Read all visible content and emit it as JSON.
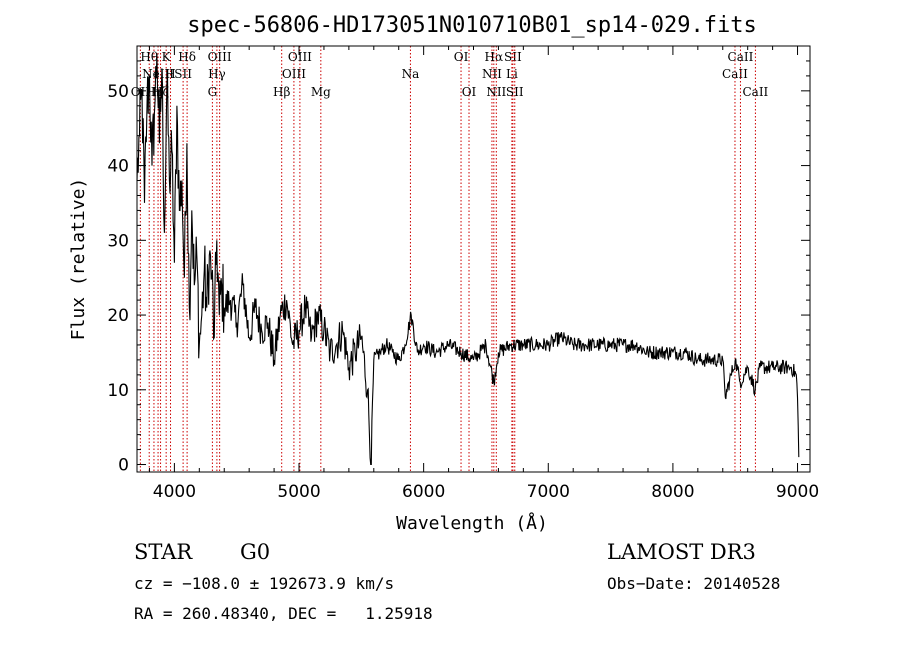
{
  "chart_data": {
    "type": "line",
    "title": "spec-56806-HD173051N010710B01_sp14-029.fits",
    "xlabel": "Wavelength (Å)",
    "ylabel": "Flux (relative)",
    "xlim": [
      3700,
      9100
    ],
    "ylim": [
      -1,
      56
    ],
    "x_ticks": [
      4000,
      5000,
      6000,
      7000,
      8000,
      9000
    ],
    "y_ticks": [
      0,
      10,
      20,
      30,
      40,
      50
    ],
    "grid": false,
    "line_color": "#000000",
    "marker_color": "#cc0000",
    "series": [
      {
        "x": [
          3700,
          3720,
          3740,
          3760,
          3780,
          3800,
          3820,
          3840,
          3860,
          3880,
          3900,
          3920,
          3940,
          3960,
          3980,
          4000,
          4020,
          4040,
          4060,
          4080,
          4100,
          4120,
          4140,
          4160,
          4180,
          4200,
          4220,
          4240,
          4260,
          4280,
          4300,
          4320,
          4340,
          4360,
          4380,
          4400,
          4450,
          4500,
          4550,
          4600,
          4650,
          4700,
          4750,
          4800,
          4850,
          4900,
          4950,
          5000,
          5050,
          5100,
          5150,
          5200,
          5250,
          5300,
          5350,
          5400,
          5450,
          5500,
          5550,
          5580,
          5600,
          5650,
          5700,
          5750,
          5800,
          5850,
          5900,
          5950,
          6000,
          6100,
          6200,
          6300,
          6400,
          6500,
          6563,
          6600,
          6700,
          6800,
          6900,
          7000,
          7100,
          7200,
          7300,
          7400,
          7500,
          7600,
          7700,
          7800,
          7900,
          8000,
          8100,
          8200,
          8300,
          8400,
          8420,
          8500,
          8540,
          8600,
          8660,
          8700,
          8800,
          8900,
          8950,
          8990,
          9000,
          9010
        ],
        "y": [
          38,
          44,
          50,
          35,
          48,
          52,
          40,
          47,
          55,
          43,
          53,
          31,
          51,
          38,
          42,
          27,
          48,
          34,
          38,
          25,
          43,
          21,
          34,
          24,
          28,
          16,
          20,
          26,
          21,
          28,
          25,
          17,
          30,
          20,
          24,
          21,
          22,
          19,
          24,
          17,
          21,
          18,
          19,
          14,
          20,
          22,
          16,
          18,
          21,
          17,
          20,
          18,
          15,
          16,
          18,
          13,
          15,
          17,
          10,
          0,
          14,
          15,
          16,
          15,
          14,
          16,
          20,
          15,
          16,
          15,
          16,
          15,
          14,
          16,
          11,
          15,
          16,
          16,
          16,
          16,
          17,
          16,
          16,
          16,
          16,
          16,
          16,
          15,
          15,
          15,
          15,
          14,
          14,
          14,
          9,
          14,
          11,
          13,
          10,
          13,
          13,
          13,
          13,
          12,
          9,
          1
        ]
      }
    ],
    "line_markers": [
      {
        "wavelength": 3727,
        "label": "OII",
        "row": 3
      },
      {
        "wavelength": 3798,
        "label": "Hθ",
        "row": 1
      },
      {
        "wavelength": 3836,
        "label": "Hη",
        "row": 3
      },
      {
        "wavelength": 3869,
        "label": "NeIII",
        "row": 2
      },
      {
        "wavelength": 3889,
        "label": "Hζ",
        "row": 3
      },
      {
        "wavelength": 3934,
        "label": "K",
        "row": 1
      },
      {
        "wavelength": 3969,
        "label": "H",
        "row": 2
      },
      {
        "wavelength": 4070,
        "label": "SII",
        "row": 2
      },
      {
        "wavelength": 4102,
        "label": "Hδ",
        "row": 1
      },
      {
        "wavelength": 4305,
        "label": "G",
        "row": 3
      },
      {
        "wavelength": 4341,
        "label": "Hγ",
        "row": 2
      },
      {
        "wavelength": 4363,
        "label": "OIII",
        "row": 1
      },
      {
        "wavelength": 4861,
        "label": "Hβ",
        "row": 3
      },
      {
        "wavelength": 4959,
        "label": "OIII",
        "row": 2
      },
      {
        "wavelength": 5007,
        "label": "OIII",
        "row": 1
      },
      {
        "wavelength": 5175,
        "label": "Mg",
        "row": 3
      },
      {
        "wavelength": 5894,
        "label": "Na",
        "row": 2
      },
      {
        "wavelength": 6300,
        "label": "OI",
        "row": 1
      },
      {
        "wavelength": 6364,
        "label": "OI",
        "row": 3
      },
      {
        "wavelength": 6548,
        "label": "NII",
        "row": 2
      },
      {
        "wavelength": 6563,
        "label": "Hα",
        "row": 1
      },
      {
        "wavelength": 6583,
        "label": "NII",
        "row": 3
      },
      {
        "wavelength": 6708,
        "label": "Li",
        "row": 2
      },
      {
        "wavelength": 6716,
        "label": "SII",
        "row": 1
      },
      {
        "wavelength": 6731,
        "label": "SII",
        "row": 3
      },
      {
        "wavelength": 8498,
        "label": "CaII",
        "row": 2
      },
      {
        "wavelength": 8542,
        "label": "CaII",
        "row": 1
      },
      {
        "wavelength": 8662,
        "label": "CaII",
        "row": 3
      }
    ]
  },
  "info": {
    "object_class": "STAR",
    "subclass": "G0",
    "survey": "LAMOST DR3",
    "redshift_line": "cz = −108.0 ± 192673.9 km/s",
    "obs_date_line": "Obs−Date: 20140528",
    "coords_line": "RA = 260.48340, DEC =   1.25918"
  }
}
